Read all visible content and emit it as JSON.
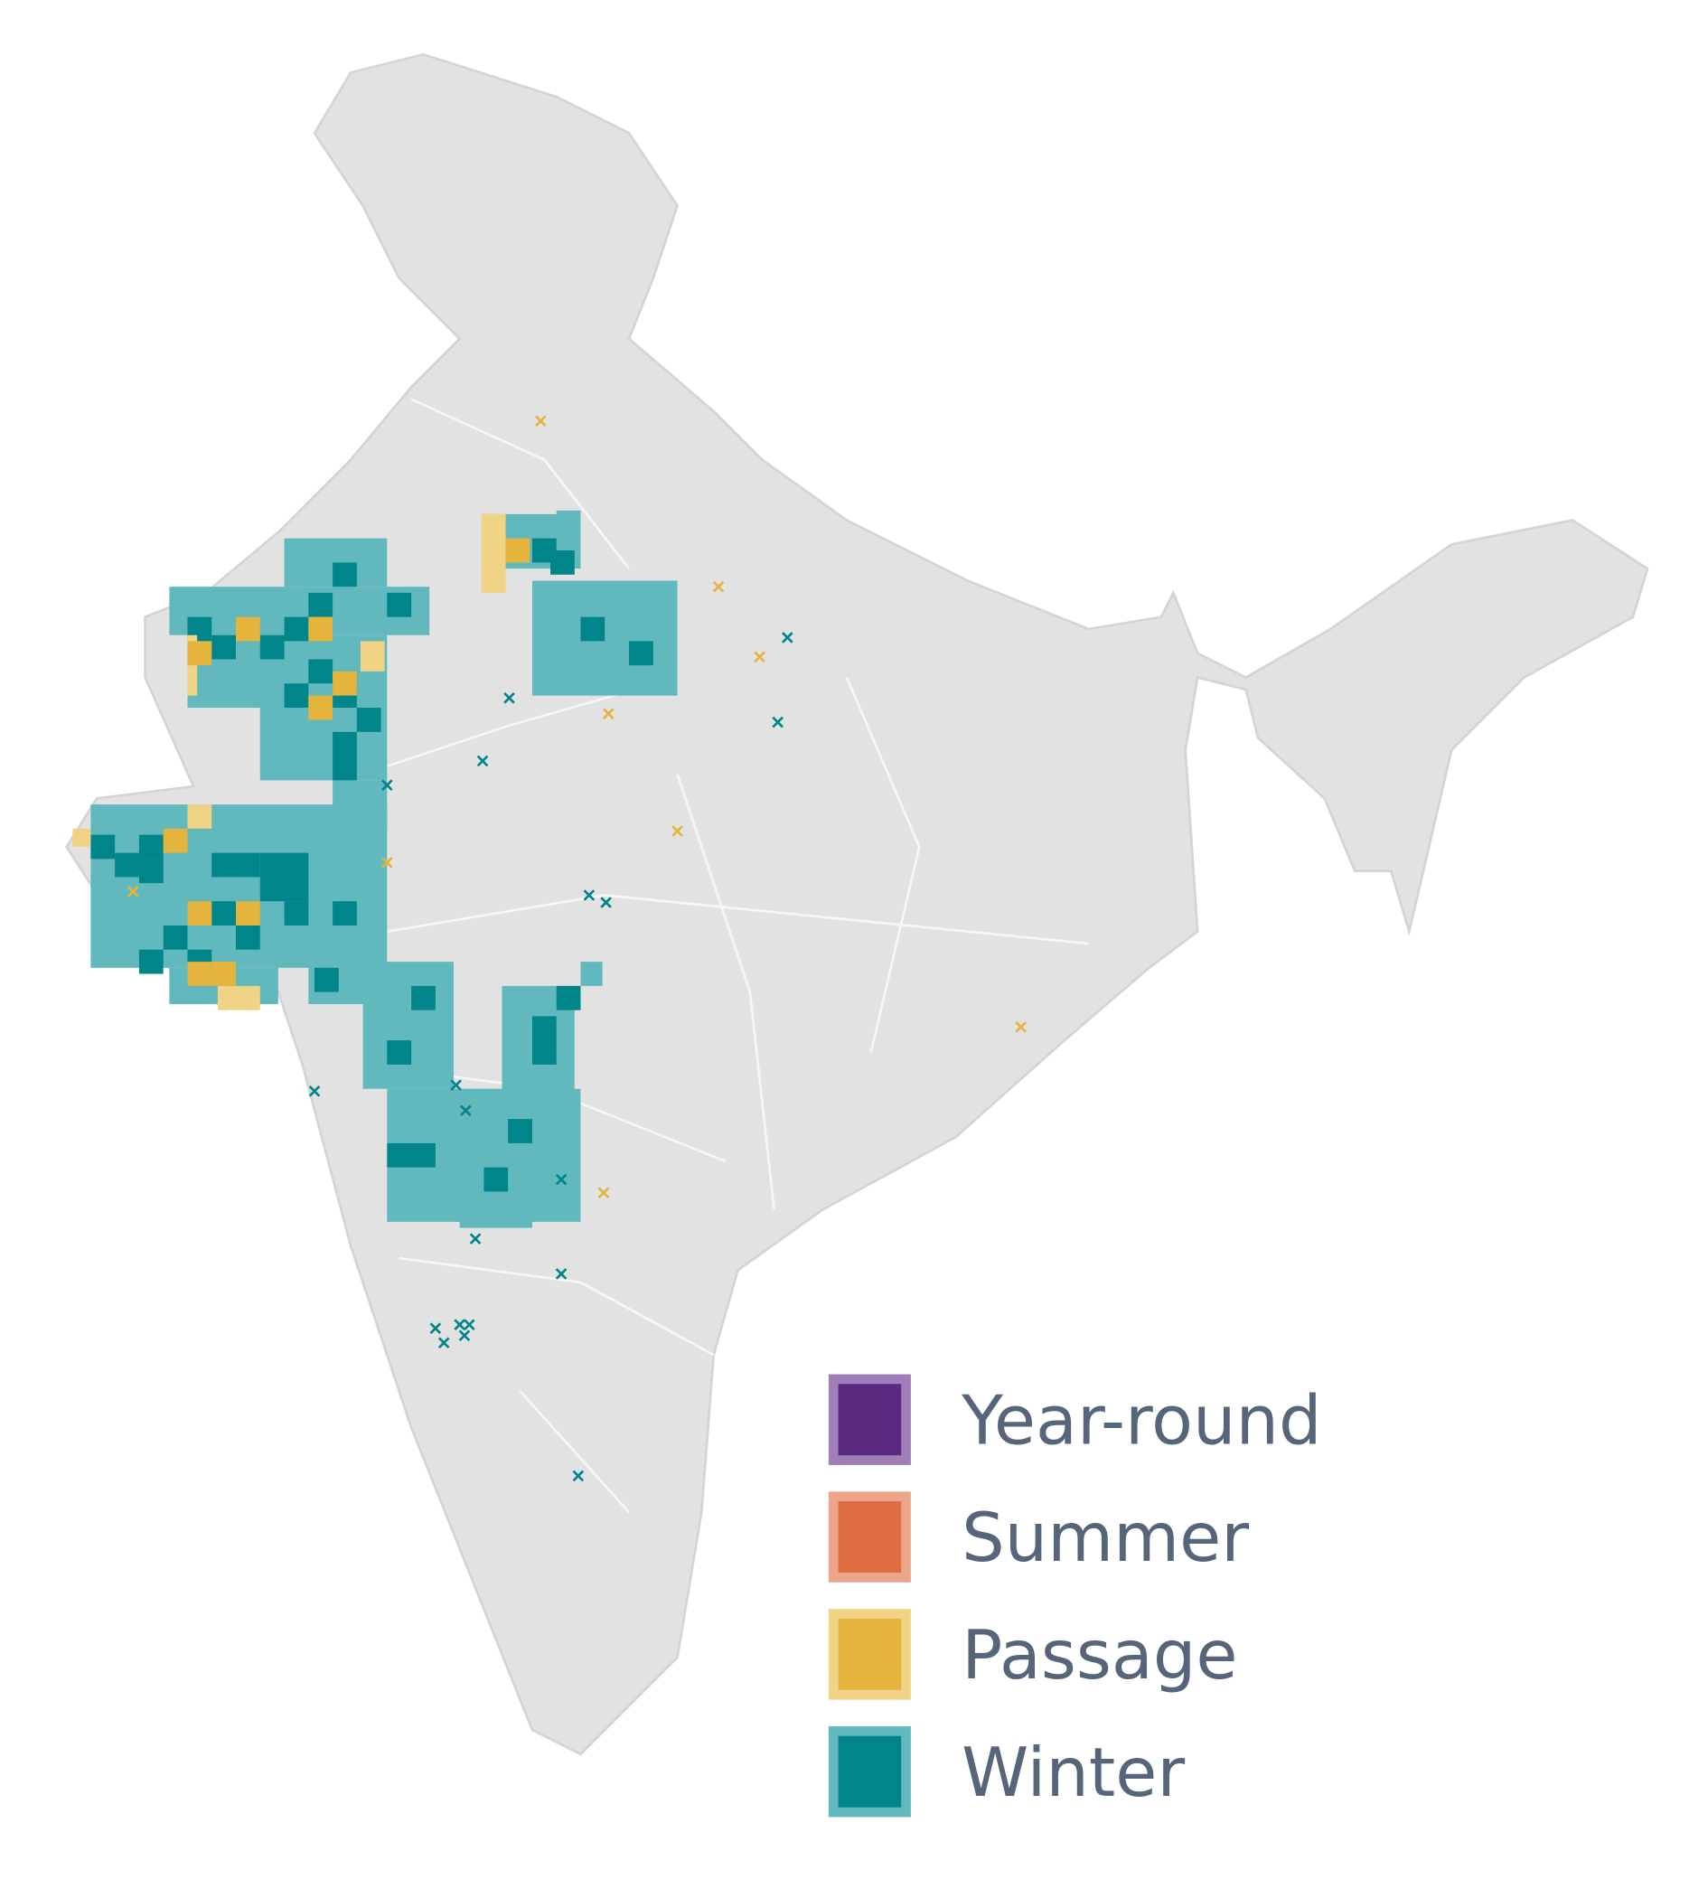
{
  "legend": {
    "items": [
      {
        "label": "Year-round",
        "color": "#5c2a80",
        "border": "#9f7eb9"
      },
      {
        "label": "Summer",
        "color": "#df6c42",
        "border": "#eda58a"
      },
      {
        "label": "Passage",
        "color": "#e4b43c",
        "border": "#f0d384"
      },
      {
        "label": "Winter",
        "color": "#00858b",
        "border": "#62b9bd"
      }
    ]
  }
}
